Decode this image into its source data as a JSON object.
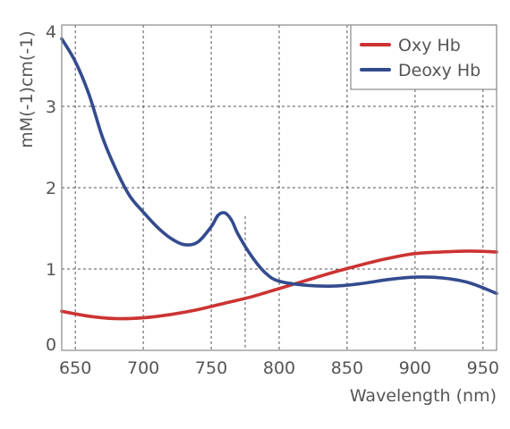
{
  "chart_data": {
    "type": "line",
    "xlabel": "Wavelength (nm)",
    "ylabel": "mM(-1)cm(-1)",
    "xlim": [
      640,
      960
    ],
    "ylim": [
      0,
      4
    ],
    "x_ticks": [
      "650",
      "700",
      "750",
      "800",
      "850",
      "900",
      "950"
    ],
    "y_ticks": [
      "0",
      "1",
      "2",
      "3",
      "4"
    ],
    "grid": true,
    "grid_style": "dashed",
    "extra_gridlines_x": [
      775
    ],
    "legend_position": "top-right",
    "series": [
      {
        "name": "Oxy Hb",
        "color": "#cc3333",
        "x": [
          640,
          660,
          680,
          700,
          720,
          740,
          760,
          780,
          800,
          820,
          840,
          860,
          880,
          900,
          920,
          940,
          960
        ],
        "y": [
          0.48,
          0.42,
          0.39,
          0.4,
          0.44,
          0.5,
          0.58,
          0.66,
          0.76,
          0.86,
          0.96,
          1.05,
          1.13,
          1.19,
          1.21,
          1.22,
          1.21
        ]
      },
      {
        "name": "Deoxy Hb",
        "color": "#334b8e",
        "x": [
          640,
          650,
          660,
          670,
          680,
          690,
          700,
          710,
          720,
          730,
          740,
          750,
          755,
          760,
          765,
          770,
          780,
          790,
          800,
          820,
          840,
          860,
          880,
          900,
          920,
          940,
          960
        ],
        "y": [
          3.83,
          3.55,
          3.15,
          2.62,
          2.22,
          1.9,
          1.7,
          1.52,
          1.38,
          1.3,
          1.33,
          1.52,
          1.66,
          1.69,
          1.6,
          1.42,
          1.15,
          0.95,
          0.85,
          0.8,
          0.79,
          0.82,
          0.87,
          0.9,
          0.89,
          0.83,
          0.7
        ]
      }
    ]
  }
}
